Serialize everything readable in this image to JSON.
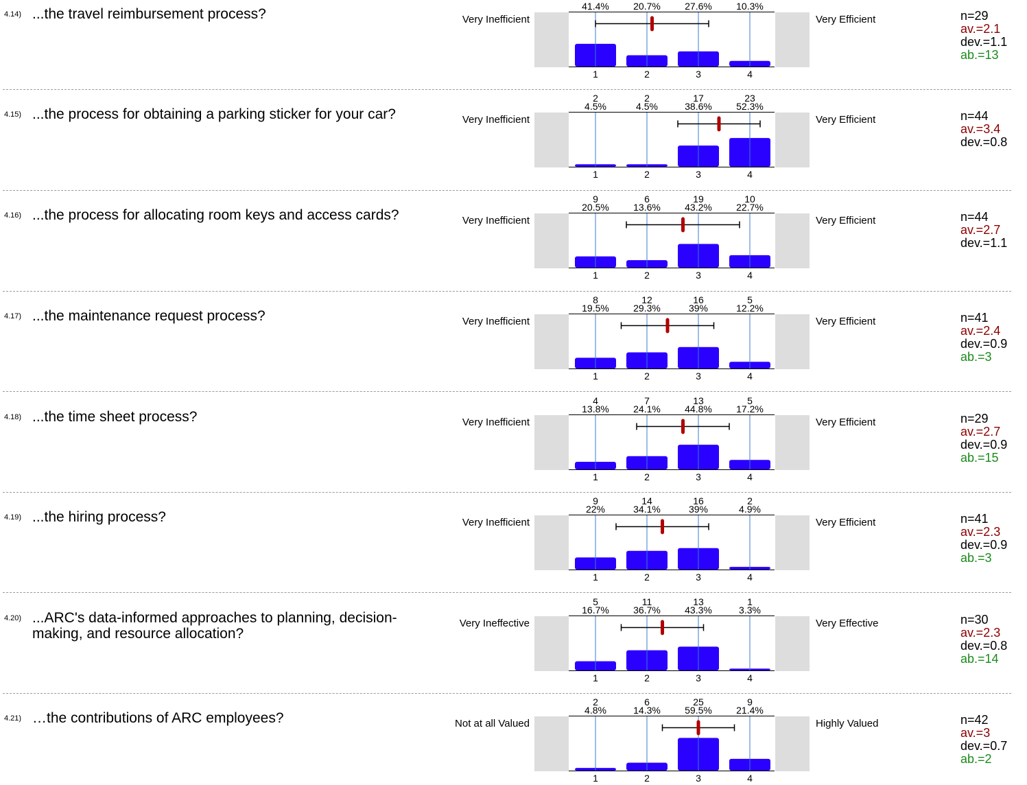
{
  "colors": {
    "bar": "#2a00ff",
    "mean_marker": "#b00000",
    "average_text": "#8b0000",
    "abstain_text": "#1a8a1a",
    "gridline": "#3a7bd5",
    "side_box": "#dddddd",
    "separator": "#9a9a9a"
  },
  "chart_data": [
    {
      "type": "bar",
      "id": "4.14)",
      "question": "...the travel reimbursement process?",
      "left_label": "Very Inefficient",
      "right_label": "Very Efficient",
      "categories": [
        "1",
        "2",
        "3",
        "4"
      ],
      "counts": [
        null,
        null,
        null,
        null
      ],
      "percents": [
        "41.4%",
        "20.7%",
        "27.6%",
        "10.3%"
      ],
      "values": [
        41.4,
        20.7,
        27.6,
        10.3
      ],
      "stats": {
        "n": "n=29",
        "av": "av.=2.1",
        "dev": "dev.=1.1",
        "ab": "ab.=13"
      },
      "mean": 2.1,
      "sd": 1.1,
      "ylim": [
        0,
        100
      ]
    },
    {
      "type": "bar",
      "id": "4.15)",
      "question": "...the process for obtaining a parking sticker for your car?",
      "left_label": "Very Inefficient",
      "right_label": "Very Efficient",
      "categories": [
        "1",
        "2",
        "3",
        "4"
      ],
      "counts": [
        "2",
        "2",
        "17",
        "23"
      ],
      "percents": [
        "4.5%",
        "4.5%",
        "38.6%",
        "52.3%"
      ],
      "values": [
        4.5,
        4.5,
        38.6,
        52.3
      ],
      "stats": {
        "n": "n=44",
        "av": "av.=3.4",
        "dev": "dev.=0.8",
        "ab": null
      },
      "mean": 3.4,
      "sd": 0.8,
      "ylim": [
        0,
        100
      ]
    },
    {
      "type": "bar",
      "id": "4.16)",
      "question": "...the process for allocating room keys and access cards?",
      "left_label": "Very Inefficient",
      "right_label": "Very Efficient",
      "categories": [
        "1",
        "2",
        "3",
        "4"
      ],
      "counts": [
        "9",
        "6",
        "19",
        "10"
      ],
      "percents": [
        "20.5%",
        "13.6%",
        "43.2%",
        "22.7%"
      ],
      "values": [
        20.5,
        13.6,
        43.2,
        22.7
      ],
      "stats": {
        "n": "n=44",
        "av": "av.=2.7",
        "dev": "dev.=1.1",
        "ab": null
      },
      "mean": 2.7,
      "sd": 1.1,
      "ylim": [
        0,
        100
      ]
    },
    {
      "type": "bar",
      "id": "4.17)",
      "question": "...the maintenance request process?",
      "left_label": "Very Inefficient",
      "right_label": "Very Efficient",
      "categories": [
        "1",
        "2",
        "3",
        "4"
      ],
      "counts": [
        "8",
        "12",
        "16",
        "5"
      ],
      "percents": [
        "19.5%",
        "29.3%",
        "39%",
        "12.2%"
      ],
      "values": [
        19.5,
        29.3,
        39,
        12.2
      ],
      "stats": {
        "n": "n=41",
        "av": "av.=2.4",
        "dev": "dev.=0.9",
        "ab": "ab.=3"
      },
      "mean": 2.4,
      "sd": 0.9,
      "ylim": [
        0,
        100
      ]
    },
    {
      "type": "bar",
      "id": "4.18)",
      "question": "...the time sheet process?",
      "left_label": "Very Inefficient",
      "right_label": "Very Efficient",
      "categories": [
        "1",
        "2",
        "3",
        "4"
      ],
      "counts": [
        "4",
        "7",
        "13",
        "5"
      ],
      "percents": [
        "13.8%",
        "24.1%",
        "44.8%",
        "17.2%"
      ],
      "values": [
        13.8,
        24.1,
        44.8,
        17.2
      ],
      "stats": {
        "n": "n=29",
        "av": "av.=2.7",
        "dev": "dev.=0.9",
        "ab": "ab.=15"
      },
      "mean": 2.7,
      "sd": 0.9,
      "ylim": [
        0,
        100
      ]
    },
    {
      "type": "bar",
      "id": "4.19)",
      "question": "...the hiring process?",
      "left_label": "Very Inefficient",
      "right_label": "Very Efficient",
      "categories": [
        "1",
        "2",
        "3",
        "4"
      ],
      "counts": [
        "9",
        "14",
        "16",
        "2"
      ],
      "percents": [
        "22%",
        "34.1%",
        "39%",
        "4.9%"
      ],
      "values": [
        22,
        34.1,
        39,
        4.9
      ],
      "stats": {
        "n": "n=41",
        "av": "av.=2.3",
        "dev": "dev.=0.9",
        "ab": "ab.=3"
      },
      "mean": 2.3,
      "sd": 0.9,
      "ylim": [
        0,
        100
      ]
    },
    {
      "type": "bar",
      "id": "4.20)",
      "question": "...ARC's data-informed approaches to planning, decision-making, and resource allocation?",
      "left_label": "Very Ineffective",
      "right_label": "Very Effective",
      "categories": [
        "1",
        "2",
        "3",
        "4"
      ],
      "counts": [
        "5",
        "11",
        "13",
        "1"
      ],
      "percents": [
        "16.7%",
        "36.7%",
        "43.3%",
        "3.3%"
      ],
      "values": [
        16.7,
        36.7,
        43.3,
        3.3
      ],
      "stats": {
        "n": "n=30",
        "av": "av.=2.3",
        "dev": "dev.=0.8",
        "ab": "ab.=14"
      },
      "mean": 2.3,
      "sd": 0.8,
      "ylim": [
        0,
        100
      ]
    },
    {
      "type": "bar",
      "id": "4.21)",
      "question": "…the contributions of ARC employees?",
      "left_label": "Not at all Valued",
      "right_label": "Highly Valued",
      "categories": [
        "1",
        "2",
        "3",
        "4"
      ],
      "counts": [
        "2",
        "6",
        "25",
        "9"
      ],
      "percents": [
        "4.8%",
        "14.3%",
        "59.5%",
        "21.4%"
      ],
      "values": [
        4.8,
        14.3,
        59.5,
        21.4
      ],
      "stats": {
        "n": "n=42",
        "av": "av.=3",
        "dev": "dev.=0.7",
        "ab": "ab.=2"
      },
      "mean": 3.0,
      "sd": 0.7,
      "ylim": [
        0,
        100
      ]
    }
  ]
}
